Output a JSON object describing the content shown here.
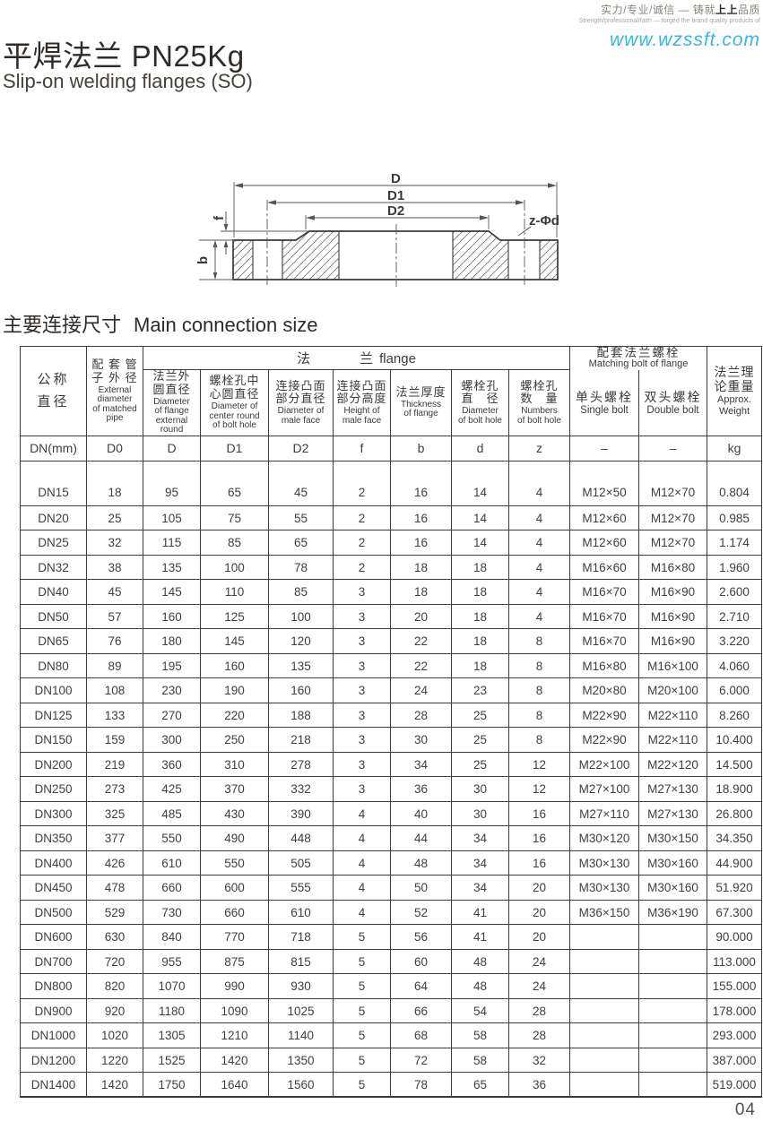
{
  "colors": {
    "website_blue": "#3cb4e7"
  },
  "page_number": "04",
  "header": {
    "tagline_zh_pre": "实力/专业/诚信 — 铸就",
    "tagline_zh_brand": "上上",
    "tagline_zh_post": "品质",
    "tagline_en": "Strength/professional/faith — forged the brand quality products of",
    "website": "www.wzssft.com"
  },
  "title": {
    "main": "平焊法兰 PN25Kg",
    "sub": "Slip-on welding flanges (SO)"
  },
  "section": {
    "zh": "主要连接尺寸",
    "en": "Main connection size"
  },
  "diagram": {
    "labels": {
      "d": "D",
      "d1": "D1",
      "d2": "D2",
      "f": "f",
      "b": "b",
      "zphid": "z-Φd"
    }
  },
  "table": {
    "groups": {
      "flange_zh": "法兰",
      "flange_en": "flange",
      "bolt_zh": "配套法兰螺栓",
      "bolt_en": "Matching bolt of flange"
    },
    "columns": [
      {
        "zh": "公称\n直径",
        "en": "",
        "sym": "DN(mm)"
      },
      {
        "zh": "配 套 管\n子 外 径",
        "en": "External\ndiameter\nof matched\npipe",
        "sym": "D0"
      },
      {
        "zh": "法兰外\n圆直径",
        "en": "Diameter\nof flange\nexternal\nround",
        "sym": "D"
      },
      {
        "zh": "螺栓孔中\n心圆直径",
        "en": "Diameter of\ncenter round\nof bolt hole",
        "sym": "D1"
      },
      {
        "zh": "连接凸面\n部分直径",
        "en": "Diameter of\nmale face",
        "sym": "D2"
      },
      {
        "zh": "连接凸面\n部分高度",
        "en": "Height of\nmale face",
        "sym": "f"
      },
      {
        "zh": "法兰厚度",
        "en": "Thickness\nof flange",
        "sym": "b"
      },
      {
        "zh": "螺栓孔\n直　径",
        "en": "Diameter\nof bolt hole",
        "sym": "d"
      },
      {
        "zh": "螺栓孔\n数　量",
        "en": "Numbers\nof bolt hole",
        "sym": "z"
      },
      {
        "zh": "单头螺栓",
        "en": "Single bolt",
        "sym": "–"
      },
      {
        "zh": "双头螺栓",
        "en": "Double bolt",
        "sym": "–"
      },
      {
        "zh": "法兰理\n论重量",
        "en": "Approx.\nWeight",
        "sym": "kg"
      }
    ],
    "rows": [
      [
        "DN15",
        "18",
        "95",
        "65",
        "45",
        "2",
        "16",
        "14",
        "4",
        "M12×50",
        "M12×70",
        "0.804"
      ],
      [
        "DN20",
        "25",
        "105",
        "75",
        "55",
        "2",
        "16",
        "14",
        "4",
        "M12×60",
        "M12×70",
        "0.985"
      ],
      [
        "DN25",
        "32",
        "115",
        "85",
        "65",
        "2",
        "16",
        "14",
        "4",
        "M12×60",
        "M12×70",
        "1.174"
      ],
      [
        "DN32",
        "38",
        "135",
        "100",
        "78",
        "2",
        "18",
        "18",
        "4",
        "M16×60",
        "M16×80",
        "1.960"
      ],
      [
        "DN40",
        "45",
        "145",
        "110",
        "85",
        "3",
        "18",
        "18",
        "4",
        "M16×70",
        "M16×90",
        "2.600"
      ],
      [
        "DN50",
        "57",
        "160",
        "125",
        "100",
        "3",
        "20",
        "18",
        "4",
        "M16×70",
        "M16×90",
        "2.710"
      ],
      [
        "DN65",
        "76",
        "180",
        "145",
        "120",
        "3",
        "22",
        "18",
        "8",
        "M16×70",
        "M16×90",
        "3.220"
      ],
      [
        "DN80",
        "89",
        "195",
        "160",
        "135",
        "3",
        "22",
        "18",
        "8",
        "M16×80",
        "M16×100",
        "4.060"
      ],
      [
        "DN100",
        "108",
        "230",
        "190",
        "160",
        "3",
        "24",
        "23",
        "8",
        "M20×80",
        "M20×100",
        "6.000"
      ],
      [
        "DN125",
        "133",
        "270",
        "220",
        "188",
        "3",
        "28",
        "25",
        "8",
        "M22×90",
        "M22×110",
        "8.260"
      ],
      [
        "DN150",
        "159",
        "300",
        "250",
        "218",
        "3",
        "30",
        "25",
        "8",
        "M22×90",
        "M22×110",
        "10.400"
      ],
      [
        "DN200",
        "219",
        "360",
        "310",
        "278",
        "3",
        "34",
        "25",
        "12",
        "M22×100",
        "M22×120",
        "14.500"
      ],
      [
        "DN250",
        "273",
        "425",
        "370",
        "332",
        "3",
        "36",
        "30",
        "12",
        "M27×100",
        "M27×130",
        "18.900"
      ],
      [
        "DN300",
        "325",
        "485",
        "430",
        "390",
        "4",
        "40",
        "30",
        "16",
        "M27×110",
        "M27×130",
        "26.800"
      ],
      [
        "DN350",
        "377",
        "550",
        "490",
        "448",
        "4",
        "44",
        "34",
        "16",
        "M30×120",
        "M30×150",
        "34.350"
      ],
      [
        "DN400",
        "426",
        "610",
        "550",
        "505",
        "4",
        "48",
        "34",
        "16",
        "M30×130",
        "M30×160",
        "44.900"
      ],
      [
        "DN450",
        "478",
        "660",
        "600",
        "555",
        "4",
        "50",
        "34",
        "20",
        "M30×130",
        "M30×160",
        "51.920"
      ],
      [
        "DN500",
        "529",
        "730",
        "660",
        "610",
        "4",
        "52",
        "41",
        "20",
        "M36×150",
        "M36×190",
        "67.300"
      ],
      [
        "DN600",
        "630",
        "840",
        "770",
        "718",
        "5",
        "56",
        "41",
        "20",
        "",
        "",
        "90.000"
      ],
      [
        "DN700",
        "720",
        "955",
        "875",
        "815",
        "5",
        "60",
        "48",
        "24",
        "",
        "",
        "113.000"
      ],
      [
        "DN800",
        "820",
        "1070",
        "990",
        "930",
        "5",
        "64",
        "48",
        "24",
        "",
        "",
        "155.000"
      ],
      [
        "DN900",
        "920",
        "1180",
        "1090",
        "1025",
        "5",
        "66",
        "54",
        "28",
        "",
        "",
        "178.000"
      ],
      [
        "DN1000",
        "1020",
        "1305",
        "1210",
        "1140",
        "5",
        "68",
        "58",
        "28",
        "",
        "",
        "293.000"
      ],
      [
        "DN1200",
        "1220",
        "1525",
        "1420",
        "1350",
        "5",
        "72",
        "58",
        "32",
        "",
        "",
        "387.000"
      ],
      [
        "DN1400",
        "1420",
        "1750",
        "1640",
        "1560",
        "5",
        "78",
        "65",
        "36",
        "",
        "",
        "519.000"
      ]
    ]
  }
}
